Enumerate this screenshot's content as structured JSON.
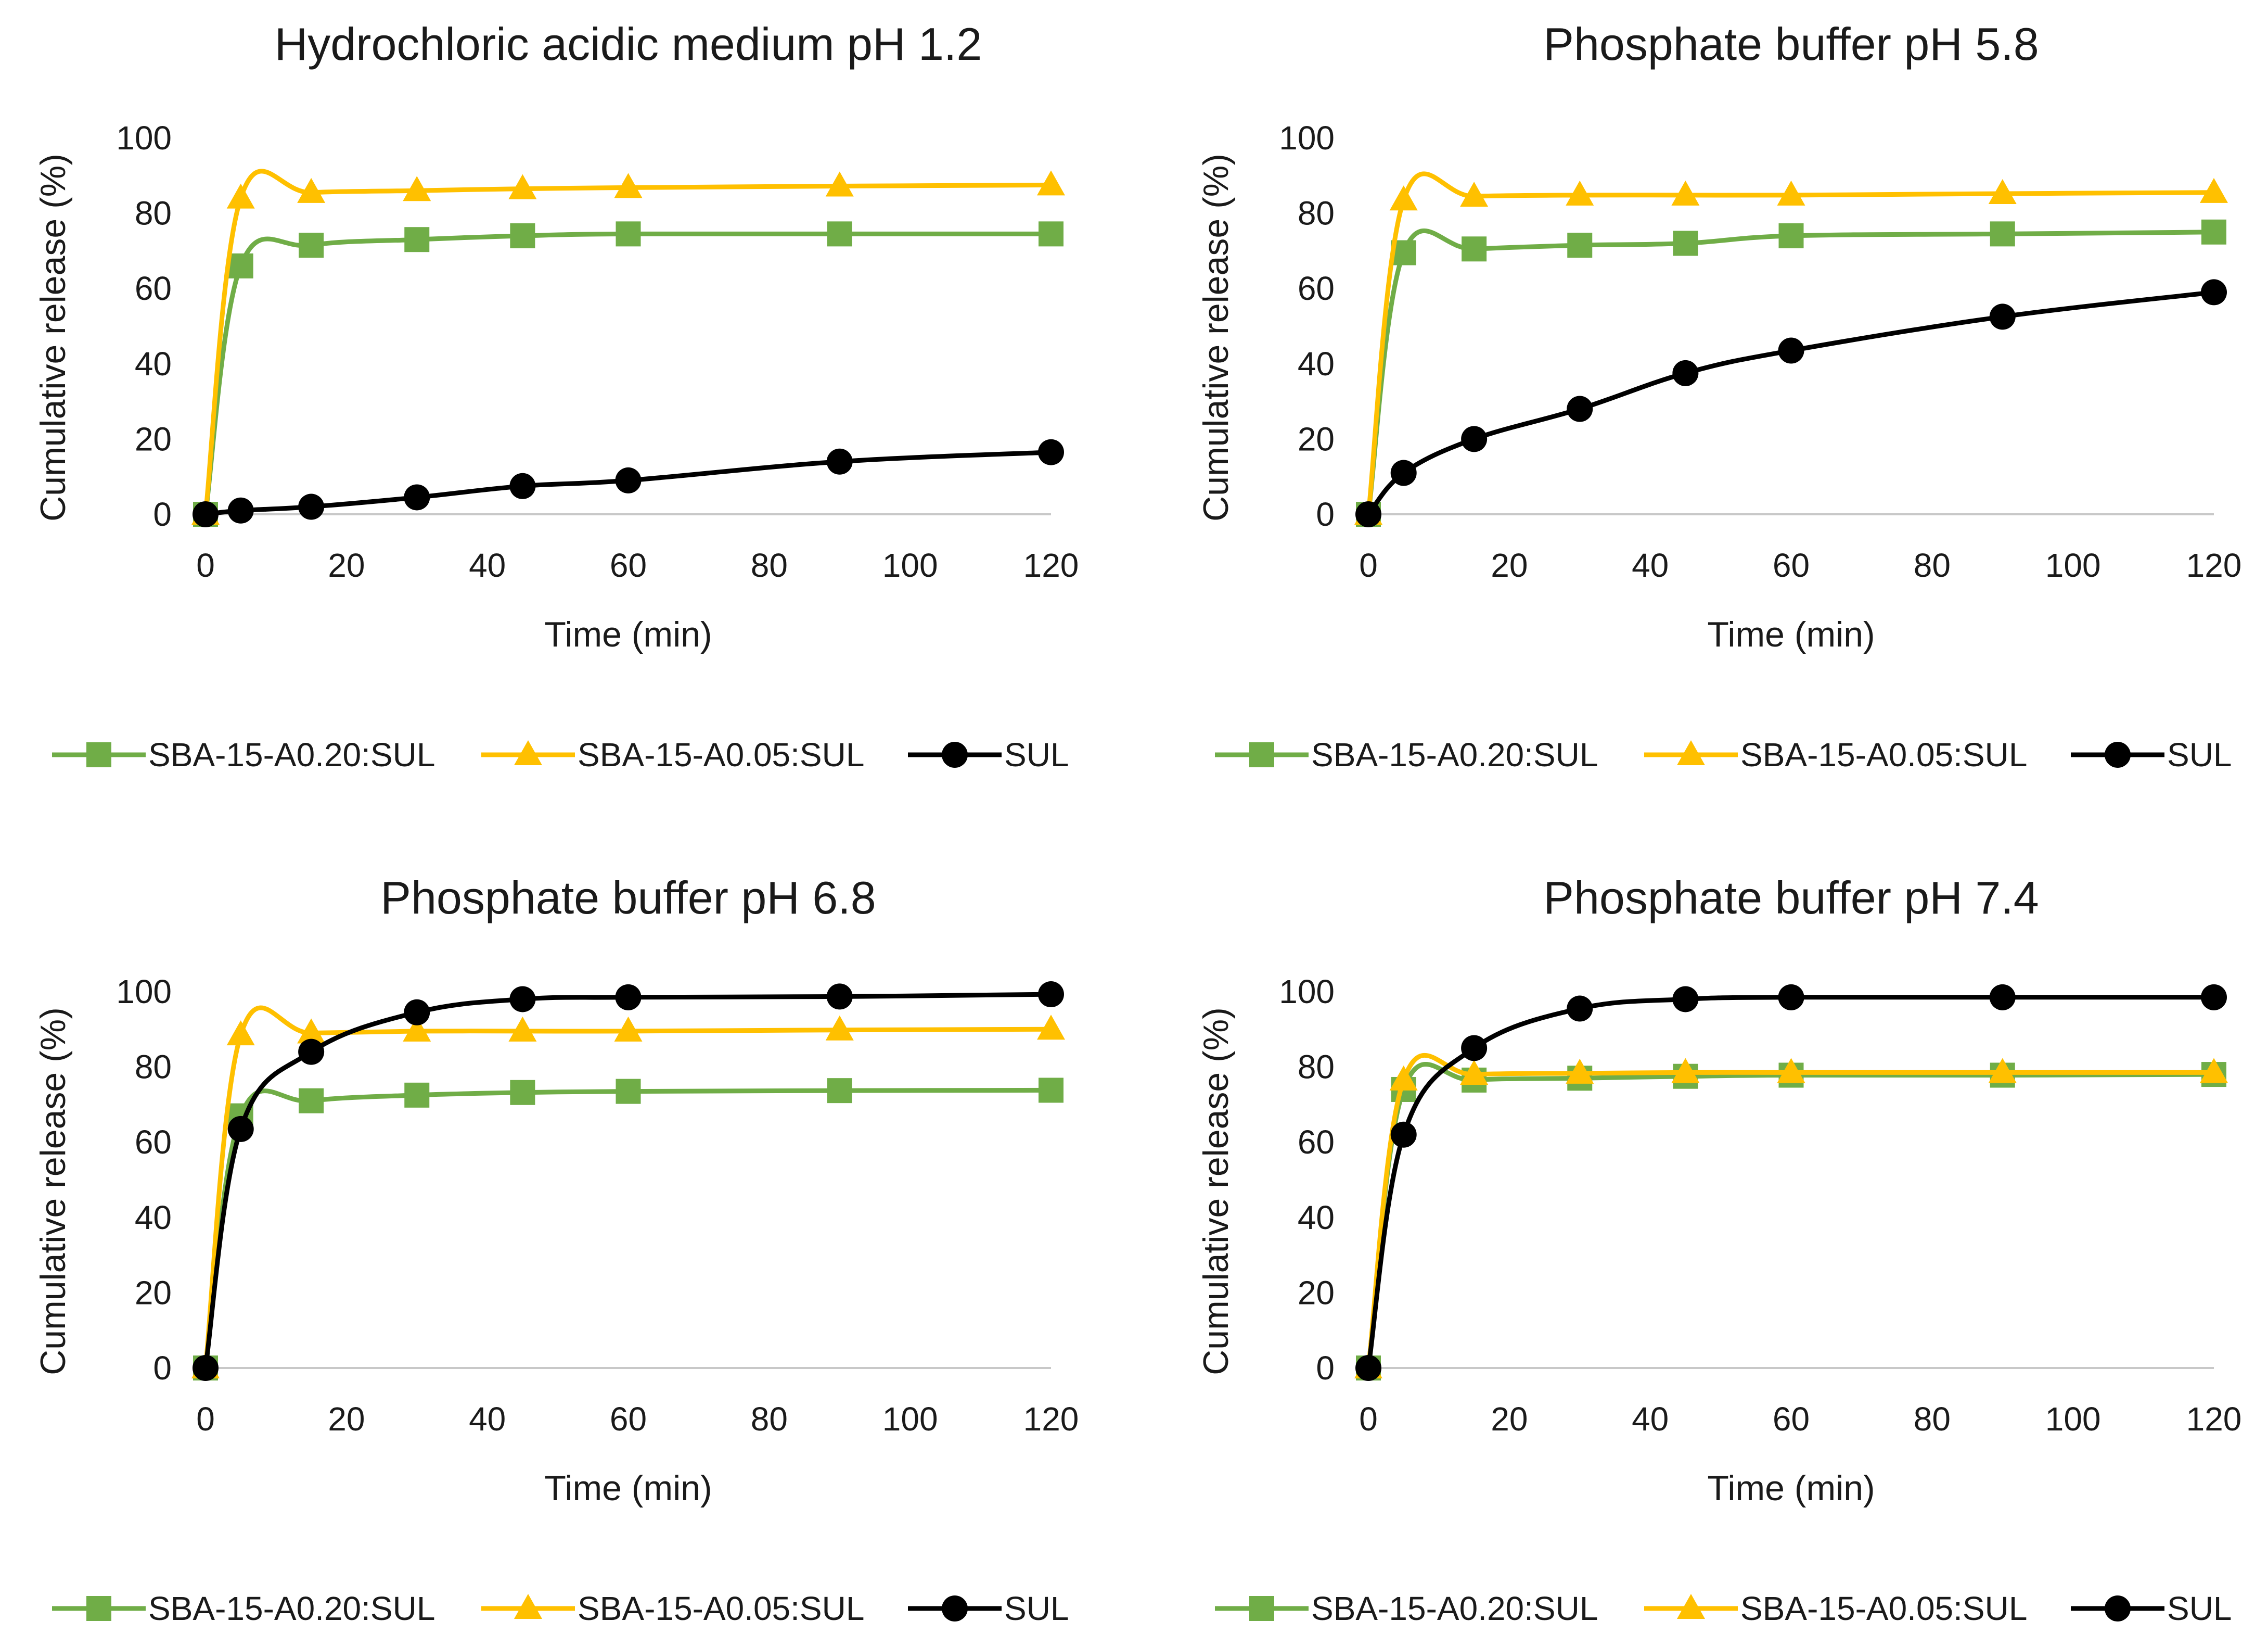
{
  "chart_data": [
    {
      "type": "line",
      "title": "Hydrochloric acidic medium pH 1.2",
      "xlabel": "Time (min)",
      "ylabel": "Cumulative release (%)",
      "xlim": [
        0,
        120
      ],
      "ylim": [
        0,
        100
      ],
      "xticks": [
        0,
        20,
        40,
        60,
        80,
        100,
        120
      ],
      "yticks": [
        0,
        20,
        40,
        60,
        80,
        100
      ],
      "grid": false,
      "legend": "bottom",
      "x": [
        0,
        5,
        15,
        30,
        45,
        60,
        90,
        120
      ],
      "series": [
        {
          "name": "SBA-15-A0.20:SUL",
          "color": "#70AD47",
          "marker": "square",
          "values": [
            0,
            66,
            71.5,
            73,
            74,
            74.5,
            74.5,
            74.5
          ]
        },
        {
          "name": "SBA-15-A0.05:SUL",
          "color": "#FFC000",
          "marker": "triangle",
          "values": [
            0,
            84,
            85.5,
            86,
            86.5,
            86.8,
            87.2,
            87.5
          ]
        },
        {
          "name": "SUL",
          "color": "#000000",
          "marker": "circle",
          "values": [
            0,
            1,
            2,
            4.5,
            7.5,
            9,
            14,
            16.5
          ]
        }
      ]
    },
    {
      "type": "line",
      "title": "Phosphate buffer pH 5.8",
      "xlabel": "Time (min)",
      "ylabel": "Cumulative release (%)",
      "xlim": [
        0,
        120
      ],
      "ylim": [
        0,
        100
      ],
      "xticks": [
        0,
        20,
        40,
        60,
        80,
        100,
        120
      ],
      "yticks": [
        0,
        20,
        40,
        60,
        80,
        100
      ],
      "grid": false,
      "legend": "bottom",
      "x": [
        0,
        5,
        15,
        30,
        45,
        60,
        90,
        120
      ],
      "series": [
        {
          "name": "SBA-15-A0.20:SUL",
          "color": "#70AD47",
          "marker": "square",
          "values": [
            0,
            69.5,
            70.5,
            71.5,
            72,
            74,
            74.5,
            75
          ]
        },
        {
          "name": "SBA-15-A0.05:SUL",
          "color": "#FFC000",
          "marker": "triangle",
          "values": [
            0,
            83.5,
            84.5,
            84.8,
            84.8,
            84.8,
            85.2,
            85.5
          ]
        },
        {
          "name": "SUL",
          "color": "#000000",
          "marker": "circle",
          "values": [
            0,
            11,
            20,
            28,
            37.5,
            43.5,
            52.5,
            59
          ]
        }
      ]
    },
    {
      "type": "line",
      "title": "Phosphate buffer pH 6.8",
      "xlabel": "Time (min)",
      "ylabel": "Cumulative release (%)",
      "xlim": [
        0,
        120
      ],
      "ylim": [
        0,
        100
      ],
      "xticks": [
        0,
        20,
        40,
        60,
        80,
        100,
        120
      ],
      "yticks": [
        0,
        20,
        40,
        60,
        80,
        100
      ],
      "grid": false,
      "legend": "bottom",
      "x": [
        0,
        5,
        15,
        30,
        45,
        60,
        90,
        120
      ],
      "series": [
        {
          "name": "SBA-15-A0.20:SUL",
          "color": "#70AD47",
          "marker": "square",
          "values": [
            0,
            67,
            71,
            72.5,
            73.2,
            73.5,
            73.7,
            73.8
          ]
        },
        {
          "name": "SBA-15-A0.05:SUL",
          "color": "#FFC000",
          "marker": "triangle",
          "values": [
            0,
            88.5,
            89,
            89.5,
            89.5,
            89.5,
            89.8,
            90
          ]
        },
        {
          "name": "SUL",
          "color": "#000000",
          "marker": "circle",
          "values": [
            0,
            63.5,
            84,
            94.5,
            98,
            98.5,
            98.7,
            99.3
          ]
        }
      ]
    },
    {
      "type": "line",
      "title": "Phosphate buffer pH 7.4",
      "xlabel": "Time (min)",
      "ylabel": "Cumulative release (%)",
      "xlim": [
        0,
        120
      ],
      "ylim": [
        0,
        100
      ],
      "xticks": [
        0,
        20,
        40,
        60,
        80,
        100,
        120
      ],
      "yticks": [
        0,
        20,
        40,
        60,
        80,
        100
      ],
      "grid": false,
      "legend": "bottom",
      "x": [
        0,
        5,
        15,
        30,
        45,
        60,
        90,
        120
      ],
      "series": [
        {
          "name": "SBA-15-A0.20:SUL",
          "color": "#70AD47",
          "marker": "square",
          "values": [
            0,
            74,
            76.5,
            77,
            77.5,
            77.8,
            77.8,
            78
          ]
        },
        {
          "name": "SBA-15-A0.05:SUL",
          "color": "#FFC000",
          "marker": "triangle",
          "values": [
            0,
            76.5,
            78,
            78.3,
            78.5,
            78.5,
            78.5,
            78.5
          ]
        },
        {
          "name": "SUL",
          "color": "#000000",
          "marker": "circle",
          "values": [
            0,
            62,
            85,
            95.5,
            98,
            98.5,
            98.5,
            98.5
          ]
        }
      ]
    }
  ]
}
